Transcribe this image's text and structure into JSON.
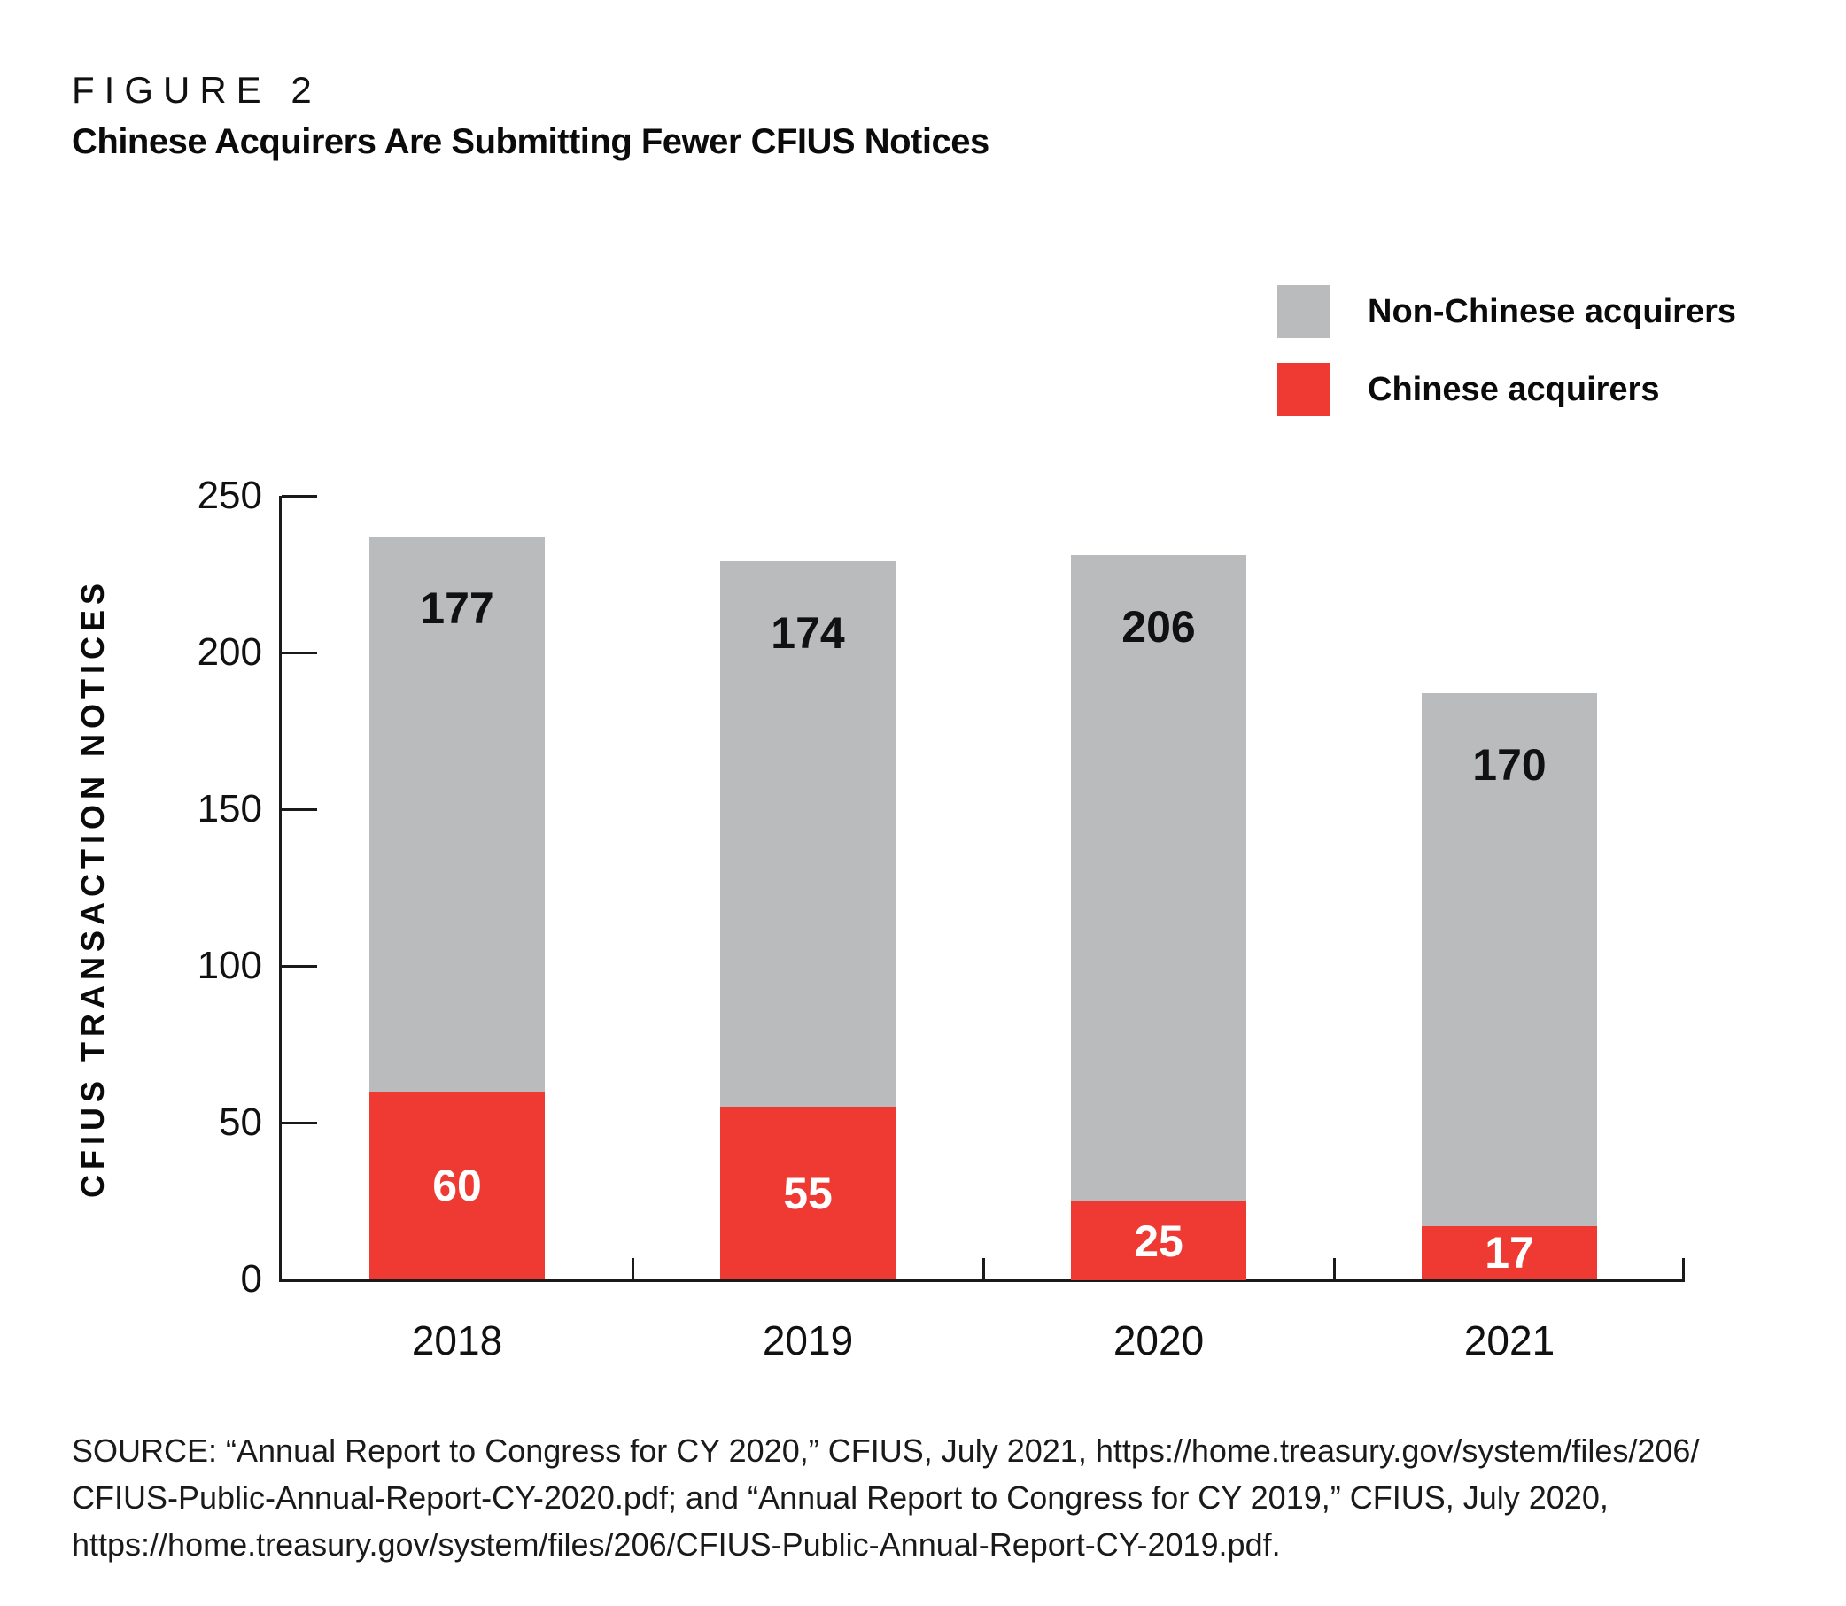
{
  "figure": {
    "label": "FIGURE 2",
    "title": "Chinese Acquirers Are Submitting Fewer CFIUS Notices"
  },
  "legend": {
    "items": [
      {
        "label": "Non-Chinese acquirers",
        "color": "#b9bbbc"
      },
      {
        "label": "Chinese acquirers",
        "color": "#ee3a32"
      }
    ]
  },
  "chart_data": {
    "type": "bar",
    "stacked": true,
    "title": "Chinese Acquirers Are Submitting Fewer CFIUS Notices",
    "categories": [
      "2018",
      "2019",
      "2020",
      "2021"
    ],
    "series": [
      {
        "name": "Chinese acquirers",
        "color": "#ee3a32",
        "label_color": "#ffffff",
        "values": [
          60,
          55,
          25,
          17
        ]
      },
      {
        "name": "Non-Chinese acquirers",
        "color": "#b9bbbc",
        "label_color": "#111111",
        "values": [
          177,
          174,
          206,
          170
        ]
      }
    ],
    "totals": [
      237,
      229,
      231,
      187
    ],
    "xlabel": "",
    "ylabel": "CFIUS TRANSACTION NOTICES",
    "ylim": [
      0,
      250
    ],
    "yticks": [
      0,
      50,
      100,
      150,
      200,
      250
    ],
    "grid": false,
    "legend_position": "top-right",
    "bar_value_labels": true
  },
  "source": {
    "lines": [
      "SOURCE: “Annual Report to Congress for CY 2020,” CFIUS, July 2021, https://home.treasury.gov/system/files/206/",
      "CFIUS-Public-Annual-Report-CY-2020.pdf; and “Annual Report to Congress for CY 2019,” CFIUS, July 2020,",
      "https://home.treasury.gov/system/files/206/CFIUS-Public-Annual-Report-CY-2019.pdf."
    ]
  }
}
